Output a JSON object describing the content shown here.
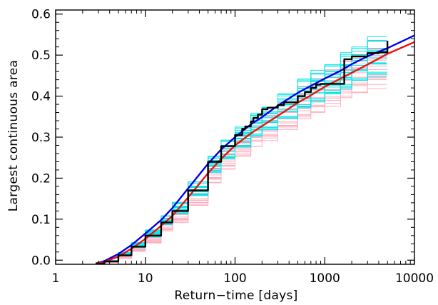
{
  "chart_data": {
    "type": "line",
    "title": "",
    "xlabel": "Return−time [days]",
    "ylabel": "Largest continuous area",
    "x_scale": "log",
    "xlim": [
      1,
      10000
    ],
    "ylim": [
      -0.01,
      0.61
    ],
    "x_ticks": [
      1,
      10,
      100,
      1000,
      10000
    ],
    "x_tick_labels": [
      "1",
      "10",
      "100",
      "1000",
      "10000"
    ],
    "y_ticks": [
      0.0,
      0.1,
      0.2,
      0.3,
      0.4,
      0.5,
      0.6
    ],
    "y_tick_labels": [
      "0.0",
      "0.1",
      "0.2",
      "0.3",
      "0.4",
      "0.5",
      "0.6"
    ],
    "grid": false,
    "legend": "none",
    "colors": {
      "blue_line": "#0000ee",
      "red_line": "#ee1111",
      "black_line": "#000000",
      "cyan_band": "#00e5e5",
      "pink_band": "#ffb0c0"
    },
    "series": [
      {
        "color": "blue",
        "x": [
          2.8,
          3.5,
          5,
          7,
          10,
          15,
          20,
          30,
          50,
          70,
          100,
          150,
          200,
          300,
          500,
          700,
          1000,
          1500,
          2000,
          3000,
          5000,
          7000,
          10000
        ],
        "y": [
          -0.008,
          -0.002,
          0.015,
          0.037,
          0.065,
          0.098,
          0.127,
          0.175,
          0.235,
          0.27,
          0.3,
          0.331,
          0.349,
          0.377,
          0.408,
          0.425,
          0.443,
          0.462,
          0.478,
          0.497,
          0.517,
          0.532,
          0.548
        ]
      },
      {
        "color": "red",
        "x": [
          2.8,
          3.5,
          5,
          7,
          10,
          15,
          20,
          30,
          50,
          70,
          100,
          150,
          200,
          300,
          500,
          700,
          1000,
          1500,
          2000,
          3000,
          5000,
          7000,
          10000
        ],
        "y": [
          -0.008,
          -0.004,
          0.009,
          0.028,
          0.052,
          0.084,
          0.108,
          0.153,
          0.212,
          0.247,
          0.28,
          0.309,
          0.327,
          0.352,
          0.384,
          0.402,
          0.423,
          0.443,
          0.457,
          0.477,
          0.503,
          0.517,
          0.532
        ]
      },
      {
        "color": "black",
        "x": [
          2.8,
          3.5,
          5,
          7,
          10,
          15,
          20,
          30,
          50,
          70,
          100,
          120,
          130,
          150,
          160,
          180,
          200,
          230,
          300,
          350,
          500,
          600,
          700,
          800,
          900,
          1600,
          1650,
          2000,
          3000,
          4000,
          5000,
          5000
        ],
        "y": [
          -0.008,
          -0.003,
          0.012,
          0.033,
          0.06,
          0.092,
          0.12,
          0.17,
          0.24,
          0.278,
          0.305,
          0.32,
          0.326,
          0.338,
          0.347,
          0.355,
          0.368,
          0.372,
          0.378,
          0.385,
          0.4,
          0.41,
          0.42,
          0.428,
          0.43,
          0.43,
          0.49,
          0.497,
          0.505,
          0.507,
          0.508,
          0.535
        ]
      }
    ]
  }
}
